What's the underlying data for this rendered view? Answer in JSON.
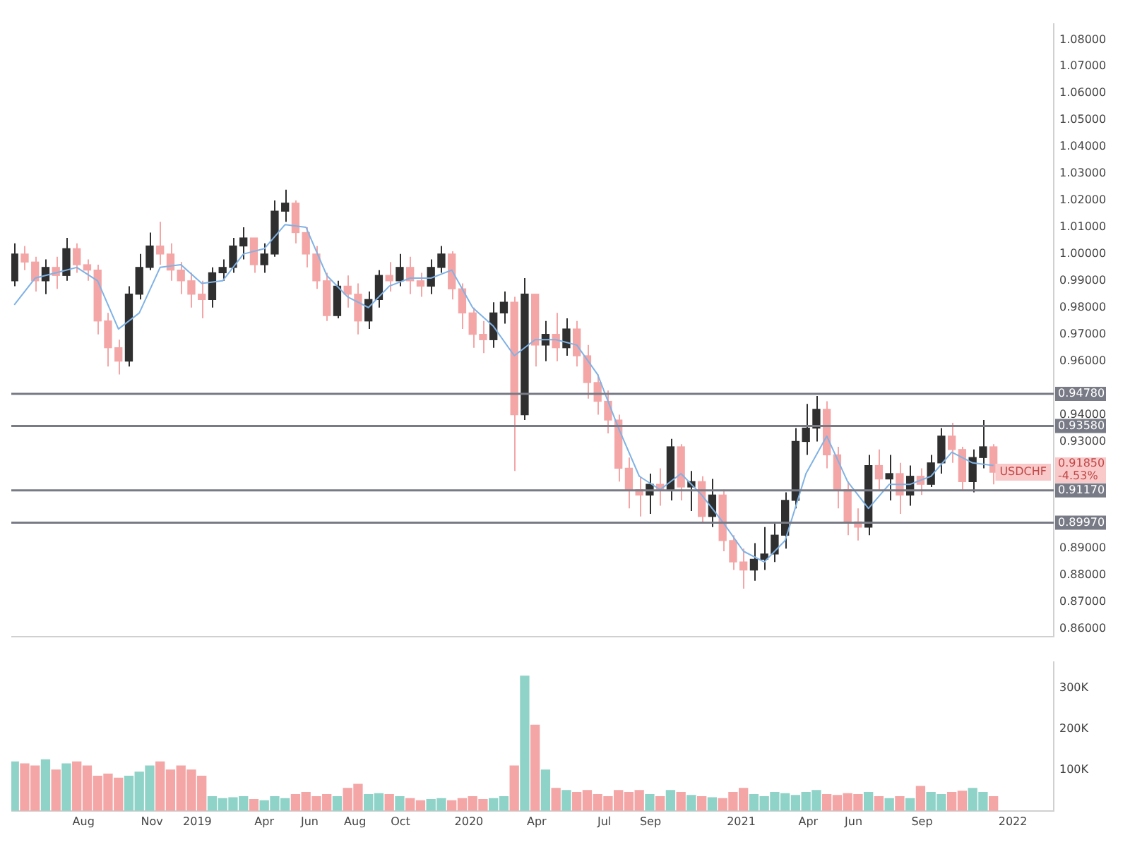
{
  "chart_data": [
    {
      "type": "candlestick",
      "tick_labels": "y",
      "grid": false,
      "x": [
        "2018-04-30",
        "2018-05-14",
        "2018-05-28",
        "2018-06-11",
        "2018-06-25",
        "2018-07-09",
        "2018-07-23",
        "2018-08-06",
        "2018-08-20",
        "2018-09-03",
        "2018-09-17",
        "2018-10-01",
        "2018-10-15",
        "2018-10-29",
        "2018-11-12",
        "2018-11-26",
        "2018-12-10",
        "2018-12-24",
        "2019-01-07",
        "2019-01-21",
        "2019-02-04",
        "2019-02-18",
        "2019-03-04",
        "2019-03-18",
        "2019-04-01",
        "2019-04-15",
        "2019-04-29",
        "2019-05-13",
        "2019-05-27",
        "2019-06-10",
        "2019-06-24",
        "2019-07-08",
        "2019-07-22",
        "2019-08-05",
        "2019-08-19",
        "2019-09-02",
        "2019-09-16",
        "2019-09-30",
        "2019-10-14",
        "2019-10-28",
        "2019-11-11",
        "2019-11-25",
        "2019-12-09",
        "2019-12-23",
        "2020-01-06",
        "2020-01-20",
        "2020-02-03",
        "2020-02-17",
        "2020-03-02",
        "2020-03-16",
        "2020-03-30",
        "2020-04-13",
        "2020-04-27",
        "2020-05-11",
        "2020-05-25",
        "2020-06-08",
        "2020-06-22",
        "2020-07-06",
        "2020-07-20",
        "2020-08-03",
        "2020-08-17",
        "2020-08-31",
        "2020-09-14",
        "2020-09-28",
        "2020-10-12",
        "2020-10-26",
        "2020-11-09",
        "2020-11-23",
        "2020-12-07",
        "2020-12-21",
        "2021-01-04",
        "2021-01-18",
        "2021-02-01",
        "2021-02-15",
        "2021-03-01",
        "2021-03-15",
        "2021-03-29",
        "2021-04-12",
        "2021-04-26",
        "2021-05-10",
        "2021-05-24",
        "2021-06-07",
        "2021-06-21",
        "2021-07-05",
        "2021-07-19",
        "2021-08-02",
        "2021-08-16",
        "2021-08-30",
        "2021-09-13",
        "2021-09-27",
        "2021-10-11",
        "2021-10-25",
        "2021-11-08",
        "2021-11-22",
        "2021-12-06"
      ],
      "ohlc": [
        [
          0.99,
          1.004,
          0.988,
          1.0
        ],
        [
          1.0,
          1.003,
          0.994,
          0.997
        ],
        [
          0.997,
          0.999,
          0.986,
          0.99
        ],
        [
          0.99,
          0.998,
          0.985,
          0.995
        ],
        [
          0.995,
          0.999,
          0.987,
          0.992
        ],
        [
          0.992,
          1.006,
          0.99,
          1.002
        ],
        [
          1.002,
          1.004,
          0.993,
          0.996
        ],
        [
          0.996,
          0.998,
          0.99,
          0.994
        ],
        [
          0.994,
          0.996,
          0.97,
          0.975
        ],
        [
          0.975,
          0.978,
          0.958,
          0.965
        ],
        [
          0.965,
          0.968,
          0.955,
          0.96
        ],
        [
          0.96,
          0.988,
          0.958,
          0.985
        ],
        [
          0.985,
          1.0,
          0.983,
          0.995
        ],
        [
          0.995,
          1.008,
          0.994,
          1.003
        ],
        [
          1.003,
          1.012,
          0.996,
          1.0
        ],
        [
          1.0,
          1.004,
          0.99,
          0.994
        ],
        [
          0.994,
          0.997,
          0.985,
          0.99
        ],
        [
          0.99,
          0.993,
          0.98,
          0.985
        ],
        [
          0.985,
          0.99,
          0.976,
          0.983
        ],
        [
          0.983,
          0.995,
          0.98,
          0.993
        ],
        [
          0.993,
          0.998,
          0.99,
          0.995
        ],
        [
          0.995,
          1.006,
          0.993,
          1.003
        ],
        [
          1.003,
          1.01,
          0.998,
          1.006
        ],
        [
          1.006,
          1.006,
          0.993,
          0.996
        ],
        [
          0.996,
          1.004,
          0.993,
          1.0
        ],
        [
          1.0,
          1.02,
          0.999,
          1.016
        ],
        [
          1.016,
          1.024,
          1.012,
          1.019
        ],
        [
          1.019,
          1.02,
          1.004,
          1.008
        ],
        [
          1.008,
          1.01,
          0.995,
          1.0
        ],
        [
          1.0,
          1.003,
          0.987,
          0.99
        ],
        [
          0.99,
          0.993,
          0.975,
          0.977
        ],
        [
          0.977,
          0.99,
          0.976,
          0.988
        ],
        [
          0.988,
          0.992,
          0.98,
          0.985
        ],
        [
          0.985,
          0.989,
          0.97,
          0.975
        ],
        [
          0.975,
          0.986,
          0.972,
          0.983
        ],
        [
          0.983,
          0.994,
          0.98,
          0.992
        ],
        [
          0.992,
          0.997,
          0.986,
          0.99
        ],
        [
          0.99,
          1.0,
          0.988,
          0.995
        ],
        [
          0.995,
          0.999,
          0.985,
          0.99
        ],
        [
          0.99,
          0.993,
          0.984,
          0.988
        ],
        [
          0.988,
          0.998,
          0.985,
          0.995
        ],
        [
          0.995,
          1.003,
          0.993,
          1.0
        ],
        [
          1.0,
          1.001,
          0.983,
          0.987
        ],
        [
          0.987,
          0.989,
          0.972,
          0.978
        ],
        [
          0.978,
          0.98,
          0.965,
          0.97
        ],
        [
          0.97,
          0.975,
          0.963,
          0.968
        ],
        [
          0.968,
          0.982,
          0.965,
          0.978
        ],
        [
          0.978,
          0.986,
          0.974,
          0.982
        ],
        [
          0.982,
          0.984,
          0.919,
          0.94
        ],
        [
          0.94,
          0.991,
          0.938,
          0.985
        ],
        [
          0.985,
          0.985,
          0.958,
          0.966
        ],
        [
          0.966,
          0.975,
          0.96,
          0.97
        ],
        [
          0.97,
          0.978,
          0.96,
          0.965
        ],
        [
          0.965,
          0.976,
          0.962,
          0.972
        ],
        [
          0.972,
          0.975,
          0.958,
          0.962
        ],
        [
          0.962,
          0.966,
          0.946,
          0.952
        ],
        [
          0.952,
          0.955,
          0.94,
          0.945
        ],
        [
          0.945,
          0.949,
          0.933,
          0.938
        ],
        [
          0.938,
          0.94,
          0.915,
          0.92
        ],
        [
          0.92,
          0.924,
          0.905,
          0.912
        ],
        [
          0.912,
          0.917,
          0.902,
          0.91
        ],
        [
          0.91,
          0.918,
          0.903,
          0.914
        ],
        [
          0.914,
          0.92,
          0.906,
          0.912
        ],
        [
          0.912,
          0.931,
          0.908,
          0.928
        ],
        [
          0.928,
          0.929,
          0.908,
          0.913
        ],
        [
          0.913,
          0.919,
          0.904,
          0.915
        ],
        [
          0.915,
          0.917,
          0.9,
          0.902
        ],
        [
          0.902,
          0.916,
          0.898,
          0.91
        ],
        [
          0.91,
          0.912,
          0.889,
          0.893
        ],
        [
          0.893,
          0.895,
          0.882,
          0.885
        ],
        [
          0.885,
          0.89,
          0.875,
          0.882
        ],
        [
          0.882,
          0.892,
          0.878,
          0.886
        ],
        [
          0.886,
          0.898,
          0.882,
          0.888
        ],
        [
          0.888,
          0.9,
          0.885,
          0.895
        ],
        [
          0.895,
          0.911,
          0.89,
          0.908
        ],
        [
          0.908,
          0.935,
          0.905,
          0.93
        ],
        [
          0.93,
          0.944,
          0.925,
          0.935
        ],
        [
          0.935,
          0.947,
          0.93,
          0.942
        ],
        [
          0.942,
          0.945,
          0.92,
          0.925
        ],
        [
          0.925,
          0.928,
          0.905,
          0.912
        ],
        [
          0.912,
          0.915,
          0.895,
          0.9
        ],
        [
          0.9,
          0.905,
          0.893,
          0.898
        ],
        [
          0.898,
          0.925,
          0.895,
          0.921
        ],
        [
          0.921,
          0.927,
          0.912,
          0.916
        ],
        [
          0.916,
          0.925,
          0.908,
          0.918
        ],
        [
          0.918,
          0.922,
          0.903,
          0.91
        ],
        [
          0.91,
          0.921,
          0.906,
          0.917
        ],
        [
          0.917,
          0.92,
          0.91,
          0.914
        ],
        [
          0.914,
          0.925,
          0.913,
          0.922
        ],
        [
          0.922,
          0.935,
          0.918,
          0.932
        ],
        [
          0.932,
          0.937,
          0.922,
          0.927
        ],
        [
          0.927,
          0.928,
          0.912,
          0.915
        ],
        [
          0.915,
          0.927,
          0.911,
          0.924
        ],
        [
          0.924,
          0.938,
          0.92,
          0.928
        ],
        [
          0.928,
          0.929,
          0.914,
          0.9185
        ]
      ],
      "colors": [
        "#2f2f2f",
        "#f4a6a6",
        "#f4a6a6",
        "#2f2f2f",
        "#f4a6a6",
        "#2f2f2f",
        "#f4a6a6",
        "#f4a6a6",
        "#f4a6a6",
        "#f4a6a6",
        "#f4a6a6",
        "#2f2f2f",
        "#2f2f2f",
        "#2f2f2f",
        "#f4a6a6",
        "#f4a6a6",
        "#f4a6a6",
        "#f4a6a6",
        "#f4a6a6",
        "#2f2f2f",
        "#2f2f2f",
        "#2f2f2f",
        "#2f2f2f",
        "#f4a6a6",
        "#2f2f2f",
        "#2f2f2f",
        "#2f2f2f",
        "#f4a6a6",
        "#f4a6a6",
        "#f4a6a6",
        "#f4a6a6",
        "#2f2f2f",
        "#f4a6a6",
        "#f4a6a6",
        "#2f2f2f",
        "#2f2f2f",
        "#f4a6a6",
        "#2f2f2f",
        "#f4a6a6",
        "#f4a6a6",
        "#2f2f2f",
        "#2f2f2f",
        "#f4a6a6",
        "#f4a6a6",
        "#f4a6a6",
        "#f4a6a6",
        "#2f2f2f",
        "#2f2f2f",
        "#f4a6a6",
        "#2f2f2f",
        "#f4a6a6",
        "#2f2f2f",
        "#f4a6a6",
        "#2f2f2f",
        "#f4a6a6",
        "#f4a6a6",
        "#f4a6a6",
        "#f4a6a6",
        "#f4a6a6",
        "#f4a6a6",
        "#f4a6a6",
        "#2f2f2f",
        "#f4a6a6",
        "#2f2f2f",
        "#f4a6a6",
        "#2f2f2f",
        "#f4a6a6",
        "#2f2f2f",
        "#f4a6a6",
        "#f4a6a6",
        "#f4a6a6",
        "#2f2f2f",
        "#2f2f2f",
        "#2f2f2f",
        "#2f2f2f",
        "#2f2f2f",
        "#2f2f2f",
        "#2f2f2f",
        "#f4a6a6",
        "#f4a6a6",
        "#f4a6a6",
        "#f4a6a6",
        "#2f2f2f",
        "#f4a6a6",
        "#2f2f2f",
        "#f4a6a6",
        "#2f2f2f",
        "#f4a6a6",
        "#2f2f2f",
        "#2f2f2f",
        "#f4a6a6",
        "#f4a6a6",
        "#2f2f2f",
        "#2f2f2f",
        "#f4a6a6"
      ],
      "series": [
        {
          "type": "line",
          "color": "#7fb2e5",
          "marker": "none",
          "x": [
            "2018-04-30",
            "2018-05-28",
            "2018-06-25",
            "2018-07-23",
            "2018-08-20",
            "2018-09-17",
            "2018-10-15",
            "2018-11-12",
            "2018-12-10",
            "2019-01-07",
            "2019-02-04",
            "2019-03-04",
            "2019-04-01",
            "2019-04-29",
            "2019-05-27",
            "2019-06-24",
            "2019-07-22",
            "2019-08-19",
            "2019-09-16",
            "2019-10-14",
            "2019-11-11",
            "2019-12-09",
            "2020-01-06",
            "2020-02-03",
            "2020-03-02",
            "2020-03-30",
            "2020-04-27",
            "2020-05-25",
            "2020-06-22",
            "2020-07-20",
            "2020-08-17",
            "2020-09-14",
            "2020-10-12",
            "2020-11-09",
            "2020-12-07",
            "2021-01-04",
            "2021-02-01",
            "2021-03-01",
            "2021-03-29",
            "2021-04-26",
            "2021-05-24",
            "2021-06-21",
            "2021-07-19",
            "2021-08-16",
            "2021-09-13",
            "2021-10-11",
            "2021-11-08",
            "2021-12-06"
          ],
          "values": [
            0.981,
            0.991,
            0.993,
            0.995,
            0.99,
            0.972,
            0.978,
            0.995,
            0.996,
            0.989,
            0.99,
            1.0,
            1.002,
            1.011,
            1.01,
            0.992,
            0.984,
            0.98,
            0.988,
            0.991,
            0.991,
            0.994,
            0.98,
            0.973,
            0.962,
            0.968,
            0.968,
            0.966,
            0.955,
            0.935,
            0.917,
            0.912,
            0.918,
            0.91,
            0.9,
            0.889,
            0.885,
            0.893,
            0.918,
            0.932,
            0.915,
            0.905,
            0.914,
            0.914,
            0.917,
            0.926,
            0.922,
            0.921
          ]
        }
      ],
      "xlim": [
        "2018-04-26",
        "2022-02-25"
      ],
      "ylim": [
        0.857,
        1.086
      ],
      "yticks": [
        {
          "value": 0.86,
          "label": "0.86000"
        },
        {
          "value": 0.87,
          "label": "0.87000"
        },
        {
          "value": 0.88,
          "label": "0.88000"
        },
        {
          "value": 0.89,
          "label": "0.89000"
        },
        {
          "value": 0.93,
          "label": "0.93000"
        },
        {
          "value": 0.94,
          "label": "0.94000"
        },
        {
          "value": 0.96,
          "label": "0.96000"
        },
        {
          "value": 0.97,
          "label": "0.97000"
        },
        {
          "value": 0.98,
          "label": "0.98000"
        },
        {
          "value": 0.99,
          "label": "0.99000"
        },
        {
          "value": 1.0,
          "label": "1.00000"
        },
        {
          "value": 1.01,
          "label": "1.01000"
        },
        {
          "value": 1.02,
          "label": "1.02000"
        },
        {
          "value": 1.03,
          "label": "1.03000"
        },
        {
          "value": 1.04,
          "label": "1.04000"
        },
        {
          "value": 1.05,
          "label": "1.05000"
        },
        {
          "value": 1.06,
          "label": "1.06000"
        },
        {
          "value": 1.07,
          "label": "1.07000"
        },
        {
          "value": 1.08,
          "label": "1.08000"
        }
      ],
      "ref_lines": [
        {
          "axis": "y",
          "value": 0.9478,
          "label": "0.94780",
          "color": "#787b86"
        },
        {
          "axis": "y",
          "value": 0.9358,
          "label": "0.93580",
          "color": "#787b86"
        },
        {
          "axis": "y",
          "value": 0.9117,
          "label": "0.91170",
          "color": "#787b86"
        },
        {
          "axis": "y",
          "value": 0.8997,
          "label": "0.89970",
          "color": "#787b86"
        }
      ],
      "annotations": [
        "USDCHF",
        "0.91850",
        "-4.53%"
      ]
    },
    {
      "type": "bar",
      "grid": false,
      "x": [
        "2018-04-30",
        "2018-05-14",
        "2018-05-28",
        "2018-06-11",
        "2018-06-25",
        "2018-07-09",
        "2018-07-23",
        "2018-08-06",
        "2018-08-20",
        "2018-09-03",
        "2018-09-17",
        "2018-10-01",
        "2018-10-15",
        "2018-10-29",
        "2018-11-12",
        "2018-11-26",
        "2018-12-10",
        "2018-12-24",
        "2019-01-07",
        "2019-01-21",
        "2019-02-04",
        "2019-02-18",
        "2019-03-04",
        "2019-03-18",
        "2019-04-01",
        "2019-04-15",
        "2019-04-29",
        "2019-05-13",
        "2019-05-27",
        "2019-06-10",
        "2019-06-24",
        "2019-07-08",
        "2019-07-22",
        "2019-08-05",
        "2019-08-19",
        "2019-09-02",
        "2019-09-16",
        "2019-09-30",
        "2019-10-14",
        "2019-10-28",
        "2019-11-11",
        "2019-11-25",
        "2019-12-09",
        "2019-12-23",
        "2020-01-06",
        "2020-01-20",
        "2020-02-03",
        "2020-02-17",
        "2020-03-02",
        "2020-03-16",
        "2020-03-30",
        "2020-04-13",
        "2020-04-27",
        "2020-05-11",
        "2020-05-25",
        "2020-06-08",
        "2020-06-22",
        "2020-07-06",
        "2020-07-20",
        "2020-08-03",
        "2020-08-17",
        "2020-08-31",
        "2020-09-14",
        "2020-09-28",
        "2020-10-12",
        "2020-10-26",
        "2020-11-09",
        "2020-11-23",
        "2020-12-07",
        "2020-12-21",
        "2021-01-04",
        "2021-01-18",
        "2021-02-01",
        "2021-02-15",
        "2021-03-01",
        "2021-03-15",
        "2021-03-29",
        "2021-04-12",
        "2021-04-26",
        "2021-05-10",
        "2021-05-24",
        "2021-06-07",
        "2021-06-21",
        "2021-07-05",
        "2021-07-19",
        "2021-08-02",
        "2021-08-16",
        "2021-08-30",
        "2021-09-13",
        "2021-09-27",
        "2021-10-11",
        "2021-10-25",
        "2021-11-08",
        "2021-11-22",
        "2021-12-06"
      ],
      "values": [
        120000,
        115000,
        110000,
        125000,
        100000,
        115000,
        120000,
        110000,
        85000,
        90000,
        80000,
        85000,
        95000,
        110000,
        120000,
        100000,
        110000,
        100000,
        85000,
        35000,
        30000,
        32000,
        35000,
        28000,
        25000,
        35000,
        30000,
        40000,
        45000,
        35000,
        40000,
        35000,
        55000,
        65000,
        40000,
        42000,
        40000,
        35000,
        30000,
        25000,
        28000,
        30000,
        25000,
        30000,
        35000,
        28000,
        30000,
        35000,
        110000,
        330000,
        210000,
        100000,
        55000,
        50000,
        45000,
        50000,
        40000,
        35000,
        50000,
        45000,
        50000,
        40000,
        35000,
        50000,
        45000,
        38000,
        35000,
        32000,
        30000,
        45000,
        55000,
        40000,
        35000,
        45000,
        42000,
        38000,
        45000,
        50000,
        40000,
        38000,
        42000,
        40000,
        45000,
        35000,
        30000,
        35000,
        30000,
        60000,
        45000,
        40000,
        45000,
        48000,
        55000,
        45000,
        35000
      ],
      "colors": [
        "#8fd3c8",
        "#f4a6a6",
        "#f4a6a6",
        "#8fd3c8",
        "#f4a6a6",
        "#8fd3c8",
        "#f4a6a6",
        "#f4a6a6",
        "#f4a6a6",
        "#f4a6a6",
        "#f4a6a6",
        "#8fd3c8",
        "#8fd3c8",
        "#8fd3c8",
        "#f4a6a6",
        "#f4a6a6",
        "#f4a6a6",
        "#f4a6a6",
        "#f4a6a6",
        "#8fd3c8",
        "#8fd3c8",
        "#8fd3c8",
        "#8fd3c8",
        "#f4a6a6",
        "#8fd3c8",
        "#8fd3c8",
        "#8fd3c8",
        "#f4a6a6",
        "#f4a6a6",
        "#f4a6a6",
        "#f4a6a6",
        "#8fd3c8",
        "#f4a6a6",
        "#f4a6a6",
        "#8fd3c8",
        "#8fd3c8",
        "#f4a6a6",
        "#8fd3c8",
        "#f4a6a6",
        "#f4a6a6",
        "#8fd3c8",
        "#8fd3c8",
        "#f4a6a6",
        "#f4a6a6",
        "#f4a6a6",
        "#f4a6a6",
        "#8fd3c8",
        "#8fd3c8",
        "#f4a6a6",
        "#8fd3c8",
        "#f4a6a6",
        "#8fd3c8",
        "#f4a6a6",
        "#8fd3c8",
        "#f4a6a6",
        "#f4a6a6",
        "#f4a6a6",
        "#f4a6a6",
        "#f4a6a6",
        "#f4a6a6",
        "#f4a6a6",
        "#8fd3c8",
        "#f4a6a6",
        "#8fd3c8",
        "#f4a6a6",
        "#8fd3c8",
        "#f4a6a6",
        "#8fd3c8",
        "#f4a6a6",
        "#f4a6a6",
        "#f4a6a6",
        "#8fd3c8",
        "#8fd3c8",
        "#8fd3c8",
        "#8fd3c8",
        "#8fd3c8",
        "#8fd3c8",
        "#8fd3c8",
        "#f4a6a6",
        "#f4a6a6",
        "#f4a6a6",
        "#f4a6a6",
        "#8fd3c8",
        "#f4a6a6",
        "#8fd3c8",
        "#f4a6a6",
        "#8fd3c8",
        "#f4a6a6",
        "#8fd3c8",
        "#8fd3c8",
        "#f4a6a6",
        "#f4a6a6",
        "#8fd3c8",
        "#8fd3c8",
        "#f4a6a6"
      ],
      "xlim": [
        "2018-04-26",
        "2022-02-25"
      ],
      "ylim": [
        0,
        365000
      ],
      "xticks": [
        {
          "value": "2018-08-01",
          "label": "Aug"
        },
        {
          "value": "2018-11-01",
          "label": "Nov"
        },
        {
          "value": "2019-01-01",
          "label": "2019"
        },
        {
          "value": "2019-04-01",
          "label": "Apr"
        },
        {
          "value": "2019-06-01",
          "label": "Jun"
        },
        {
          "value": "2019-08-01",
          "label": "Aug"
        },
        {
          "value": "2019-10-01",
          "label": "Oct"
        },
        {
          "value": "2020-01-01",
          "label": "2020"
        },
        {
          "value": "2020-04-01",
          "label": "Apr"
        },
        {
          "value": "2020-07-01",
          "label": "Jul"
        },
        {
          "value": "2020-09-01",
          "label": "Sep"
        },
        {
          "value": "2021-01-01",
          "label": "2021"
        },
        {
          "value": "2021-04-01",
          "label": "Apr"
        },
        {
          "value": "2021-06-01",
          "label": "Jun"
        },
        {
          "value": "2021-09-01",
          "label": "Sep"
        },
        {
          "value": "2022-01-01",
          "label": "2022"
        }
      ],
      "yticks": [
        {
          "value": 100000,
          "label": "100K"
        },
        {
          "value": 200000,
          "label": "200K"
        },
        {
          "value": 300000,
          "label": "300K"
        }
      ]
    }
  ]
}
